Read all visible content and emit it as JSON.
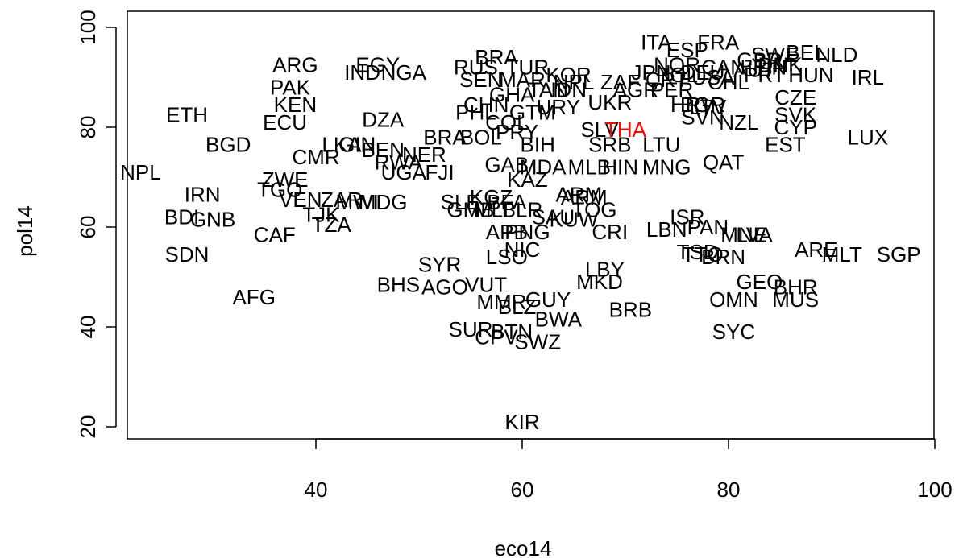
{
  "chart_data": {
    "type": "scatter",
    "title": "",
    "xlabel": "eco14",
    "ylabel": "pol14",
    "xlim": [
      20,
      100
    ],
    "ylim": [
      20,
      100
    ],
    "xticks": [
      40,
      60,
      80,
      100
    ],
    "yticks": [
      20,
      40,
      60,
      80,
      100
    ],
    "grid": false,
    "marker": "country-code text label",
    "default_color": "#000000",
    "highlight_color": "#ff0000",
    "highlight": [
      "THA"
    ],
    "points": [
      {
        "label": "ITA",
        "x": 73.0,
        "y": 97.0
      },
      {
        "label": "FRA",
        "x": 79.0,
        "y": 97.0
      },
      {
        "label": "ESP",
        "x": 76.0,
        "y": 95.5
      },
      {
        "label": "SWE",
        "x": 84.5,
        "y": 94.5
      },
      {
        "label": "BEL",
        "x": 87.5,
        "y": 95.0
      },
      {
        "label": "NLD",
        "x": 90.5,
        "y": 94.5
      },
      {
        "label": "GBR",
        "x": 83.0,
        "y": 93.5
      },
      {
        "label": "NOR",
        "x": 75.0,
        "y": 92.5
      },
      {
        "label": "CAN",
        "x": 79.5,
        "y": 92.0
      },
      {
        "label": "FIN",
        "x": 84.0,
        "y": 92.0
      },
      {
        "label": "DNK",
        "x": 85.0,
        "y": 92.5
      },
      {
        "label": "AUT",
        "x": 82.5,
        "y": 91.5
      },
      {
        "label": "DEU",
        "x": 77.5,
        "y": 91.0
      },
      {
        "label": "JPN",
        "x": 72.5,
        "y": 91.0
      },
      {
        "label": "USA",
        "x": 78.5,
        "y": 90.0
      },
      {
        "label": "BRA",
        "x": 57.5,
        "y": 94.0
      },
      {
        "label": "ARG",
        "x": 38.0,
        "y": 92.5
      },
      {
        "label": "EGY",
        "x": 46.0,
        "y": 92.5
      },
      {
        "label": "RUS",
        "x": 55.5,
        "y": 92.0
      },
      {
        "label": "TUR",
        "x": 60.5,
        "y": 92.0
      },
      {
        "label": "IND",
        "x": 44.5,
        "y": 91.0
      },
      {
        "label": "NGA",
        "x": 48.5,
        "y": 91.0
      },
      {
        "label": "KOR",
        "x": 64.5,
        "y": 90.5
      },
      {
        "label": "SEN",
        "x": 56.0,
        "y": 89.5
      },
      {
        "label": "MAR",
        "x": 60.0,
        "y": 89.5
      },
      {
        "label": "NPL",
        "x": 65.0,
        "y": 89.0
      },
      {
        "label": "IDN",
        "x": 64.5,
        "y": 87.5
      },
      {
        "label": "ZAF",
        "x": 69.5,
        "y": 89.0
      },
      {
        "label": "CRT",
        "x": 74.0,
        "y": 89.5
      },
      {
        "label": "POL",
        "x": 75.0,
        "y": 90.5
      },
      {
        "label": "CHL",
        "x": 80.0,
        "y": 89.0
      },
      {
        "label": "PRT",
        "x": 83.5,
        "y": 90.5
      },
      {
        "label": "HUN",
        "x": 88.0,
        "y": 90.5
      },
      {
        "label": "IRL",
        "x": 93.5,
        "y": 90.0
      },
      {
        "label": "AGR",
        "x": 71.0,
        "y": 87.5
      },
      {
        "label": "PER",
        "x": 74.5,
        "y": 87.5
      },
      {
        "label": "PAK",
        "x": 37.5,
        "y": 88.0
      },
      {
        "label": "GHA",
        "x": 59.0,
        "y": 86.5
      },
      {
        "label": "TAN",
        "x": 62.5,
        "y": 87.5
      },
      {
        "label": "KEN",
        "x": 38.0,
        "y": 84.5
      },
      {
        "label": "CHN",
        "x": 56.5,
        "y": 84.5
      },
      {
        "label": "UKR",
        "x": 68.5,
        "y": 85.0
      },
      {
        "label": "HRV",
        "x": 76.5,
        "y": 84.5
      },
      {
        "label": "BGR",
        "x": 77.5,
        "y": 84.5
      },
      {
        "label": "LTV",
        "x": 78.0,
        "y": 84.0
      },
      {
        "label": "CZE",
        "x": 86.5,
        "y": 86.0
      },
      {
        "label": "SVK",
        "x": 86.5,
        "y": 82.5
      },
      {
        "label": "SVN",
        "x": 77.5,
        "y": 82.0
      },
      {
        "label": "ETH",
        "x": 27.5,
        "y": 82.5
      },
      {
        "label": "ECU",
        "x": 37.0,
        "y": 81.0
      },
      {
        "label": "DZA",
        "x": 46.5,
        "y": 81.5
      },
      {
        "label": "PHL",
        "x": 55.5,
        "y": 83.0
      },
      {
        "label": "GTM",
        "x": 61.0,
        "y": 83.0
      },
      {
        "label": "URY",
        "x": 63.5,
        "y": 84.0
      },
      {
        "label": "COL",
        "x": 58.5,
        "y": 81.0
      },
      {
        "label": "NZL",
        "x": 81.0,
        "y": 81.0
      },
      {
        "label": "CYP",
        "x": 86.5,
        "y": 80.0
      },
      {
        "label": "SLV",
        "x": 67.5,
        "y": 79.5
      },
      {
        "label": "THA",
        "x": 70.0,
        "y": 79.5
      },
      {
        "label": "LUX",
        "x": 93.5,
        "y": 78.0
      },
      {
        "label": "PRY",
        "x": 59.5,
        "y": 79.0
      },
      {
        "label": "BOL",
        "x": 56.0,
        "y": 78.0
      },
      {
        "label": "BRA",
        "x": 52.5,
        "y": 78.0
      },
      {
        "label": "EST",
        "x": 85.5,
        "y": 76.5
      },
      {
        "label": "BGD",
        "x": 31.5,
        "y": 76.5
      },
      {
        "label": "LKA",
        "x": 42.5,
        "y": 76.5
      },
      {
        "label": "GIN",
        "x": 44.0,
        "y": 76.5
      },
      {
        "label": "BEN",
        "x": 46.5,
        "y": 75.5
      },
      {
        "label": "NER",
        "x": 50.5,
        "y": 74.5
      },
      {
        "label": "BIH",
        "x": 61.5,
        "y": 76.5
      },
      {
        "label": "SRB",
        "x": 68.5,
        "y": 76.5
      },
      {
        "label": "LTU",
        "x": 73.5,
        "y": 76.5
      },
      {
        "label": "CMR",
        "x": 40.0,
        "y": 74.0
      },
      {
        "label": "RWA",
        "x": 48.0,
        "y": 73.0
      },
      {
        "label": "GAB",
        "x": 58.5,
        "y": 72.5
      },
      {
        "label": "MDA",
        "x": 62.0,
        "y": 72.0
      },
      {
        "label": "MLB",
        "x": 66.5,
        "y": 72.0
      },
      {
        "label": "HIN",
        "x": 69.5,
        "y": 72.0
      },
      {
        "label": "MNG",
        "x": 74.0,
        "y": 72.0
      },
      {
        "label": "QAT",
        "x": 79.5,
        "y": 73.0
      },
      {
        "label": "NPL",
        "x": 23.0,
        "y": 71.0
      },
      {
        "label": "UGA",
        "x": 48.5,
        "y": 71.0
      },
      {
        "label": "FJI",
        "x": 52.0,
        "y": 71.0
      },
      {
        "label": "ZWE",
        "x": 37.0,
        "y": 69.5
      },
      {
        "label": "TGO",
        "x": 36.5,
        "y": 67.5
      },
      {
        "label": "KAZ",
        "x": 60.5,
        "y": 69.5
      },
      {
        "label": "ARM",
        "x": 65.5,
        "y": 66.5
      },
      {
        "label": "ARM",
        "x": 66.0,
        "y": 66.0
      },
      {
        "label": "IRN",
        "x": 29.0,
        "y": 66.5
      },
      {
        "label": "VEN",
        "x": 38.5,
        "y": 65.5
      },
      {
        "label": "ZAR",
        "x": 42.5,
        "y": 65.5
      },
      {
        "label": "MWI",
        "x": 44.0,
        "y": 65.0
      },
      {
        "label": "MDG",
        "x": 46.5,
        "y": 65.0
      },
      {
        "label": "KGZ",
        "x": 57.0,
        "y": 66.0
      },
      {
        "label": "SLE",
        "x": 54.0,
        "y": 65.0
      },
      {
        "label": "BFA",
        "x": 58.5,
        "y": 65.0
      },
      {
        "label": "GMB",
        "x": 55.0,
        "y": 63.5
      },
      {
        "label": "MLI",
        "x": 57.0,
        "y": 63.5
      },
      {
        "label": "BLR",
        "x": 60.0,
        "y": 63.5
      },
      {
        "label": "TOG",
        "x": 67.0,
        "y": 63.5
      },
      {
        "label": "BDI",
        "x": 27.0,
        "y": 62.0
      },
      {
        "label": "GNB",
        "x": 30.0,
        "y": 61.5
      },
      {
        "label": "TJK",
        "x": 40.5,
        "y": 62.5
      },
      {
        "label": "TZA",
        "x": 41.5,
        "y": 60.5
      },
      {
        "label": "SAU",
        "x": 63.0,
        "y": 62.0
      },
      {
        "label": "KUW",
        "x": 65.0,
        "y": 61.5
      },
      {
        "label": "ISR",
        "x": 76.0,
        "y": 62.0
      },
      {
        "label": "PAN",
        "x": 78.0,
        "y": 60.0
      },
      {
        "label": "LBN",
        "x": 74.0,
        "y": 59.5
      },
      {
        "label": "CRI",
        "x": 68.5,
        "y": 59.0
      },
      {
        "label": "MNE",
        "x": 81.5,
        "y": 58.5
      },
      {
        "label": "LVA",
        "x": 82.5,
        "y": 58.5
      },
      {
        "label": "CAF",
        "x": 36.0,
        "y": 58.5
      },
      {
        "label": "APB",
        "x": 58.5,
        "y": 59.0
      },
      {
        "label": "PNG",
        "x": 60.5,
        "y": 59.0
      },
      {
        "label": "ARE",
        "x": 88.5,
        "y": 55.5
      },
      {
        "label": "MLT",
        "x": 91.0,
        "y": 54.5
      },
      {
        "label": "SGP",
        "x": 96.5,
        "y": 54.5
      },
      {
        "label": "SDN",
        "x": 27.5,
        "y": 54.5
      },
      {
        "label": "NIC",
        "x": 60.0,
        "y": 55.5
      },
      {
        "label": "LSO",
        "x": 58.5,
        "y": 54.0
      },
      {
        "label": "TSD",
        "x": 77.0,
        "y": 55.0
      },
      {
        "label": "TTO",
        "x": 77.5,
        "y": 54.5
      },
      {
        "label": "BRN",
        "x": 79.5,
        "y": 54.0
      },
      {
        "label": "SYR",
        "x": 52.0,
        "y": 52.5
      },
      {
        "label": "LBY",
        "x": 68.0,
        "y": 51.5
      },
      {
        "label": "BHS",
        "x": 48.0,
        "y": 48.5
      },
      {
        "label": "AGO",
        "x": 52.5,
        "y": 48.0
      },
      {
        "label": "VUT",
        "x": 56.5,
        "y": 48.5
      },
      {
        "label": "MKD",
        "x": 67.5,
        "y": 49.0
      },
      {
        "label": "GEO",
        "x": 83.0,
        "y": 49.0
      },
      {
        "label": "BHR",
        "x": 86.5,
        "y": 48.0
      },
      {
        "label": "AFG",
        "x": 34.0,
        "y": 46.0
      },
      {
        "label": "MMR",
        "x": 58.0,
        "y": 45.0
      },
      {
        "label": "GUY",
        "x": 62.5,
        "y": 45.5
      },
      {
        "label": "BLZ",
        "x": 59.5,
        "y": 44.0
      },
      {
        "label": "OMN",
        "x": 80.5,
        "y": 45.5
      },
      {
        "label": "MUS",
        "x": 86.5,
        "y": 45.5
      },
      {
        "label": "BRB",
        "x": 70.5,
        "y": 43.5
      },
      {
        "label": "BWA",
        "x": 63.5,
        "y": 41.5
      },
      {
        "label": "SUR",
        "x": 55.0,
        "y": 39.5
      },
      {
        "label": "BTN",
        "x": 59.0,
        "y": 39.0
      },
      {
        "label": "CPV",
        "x": 57.5,
        "y": 38.0
      },
      {
        "label": "SWZ",
        "x": 61.5,
        "y": 37.0
      },
      {
        "label": "SYC",
        "x": 80.5,
        "y": 39.0
      },
      {
        "label": "KIR",
        "x": 60.0,
        "y": 21.0
      }
    ]
  }
}
